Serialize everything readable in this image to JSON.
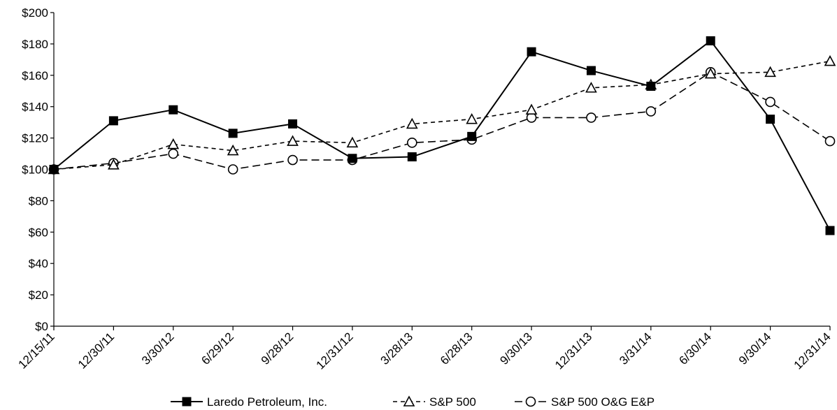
{
  "chart_data": {
    "type": "line",
    "categories": [
      "12/15/11",
      "12/30/11",
      "3/30/12",
      "6/29/12",
      "9/28/12",
      "12/31/12",
      "3/28/13",
      "6/28/13",
      "9/30/13",
      "12/31/13",
      "3/31/14",
      "6/30/14",
      "9/30/14",
      "12/31/14"
    ],
    "y_tick_labels": [
      "$0",
      "$20",
      "$40",
      "$60",
      "$80",
      "$100",
      "$120",
      "$140",
      "$160",
      "$180",
      "$200"
    ],
    "ylim": [
      0,
      200
    ],
    "grid": false,
    "legend_position": "bottom",
    "series": [
      {
        "name": "Laredo Petroleum, Inc.",
        "marker": "filled-square",
        "line": "solid",
        "values": [
          100,
          131,
          138,
          123,
          129,
          107,
          108,
          121,
          175,
          163,
          153,
          182,
          132,
          61
        ]
      },
      {
        "name": "S&P 500",
        "marker": "open-triangle",
        "line": "dashed",
        "values": [
          100,
          103,
          116,
          112,
          118,
          117,
          129,
          132,
          138,
          152,
          154,
          161,
          162,
          169
        ]
      },
      {
        "name": "S&P 500 O&G E&P",
        "marker": "open-circle",
        "line": "dashed",
        "values": [
          100,
          104,
          110,
          100,
          106,
          106,
          117,
          119,
          133,
          133,
          137,
          162,
          143,
          118
        ]
      }
    ]
  }
}
